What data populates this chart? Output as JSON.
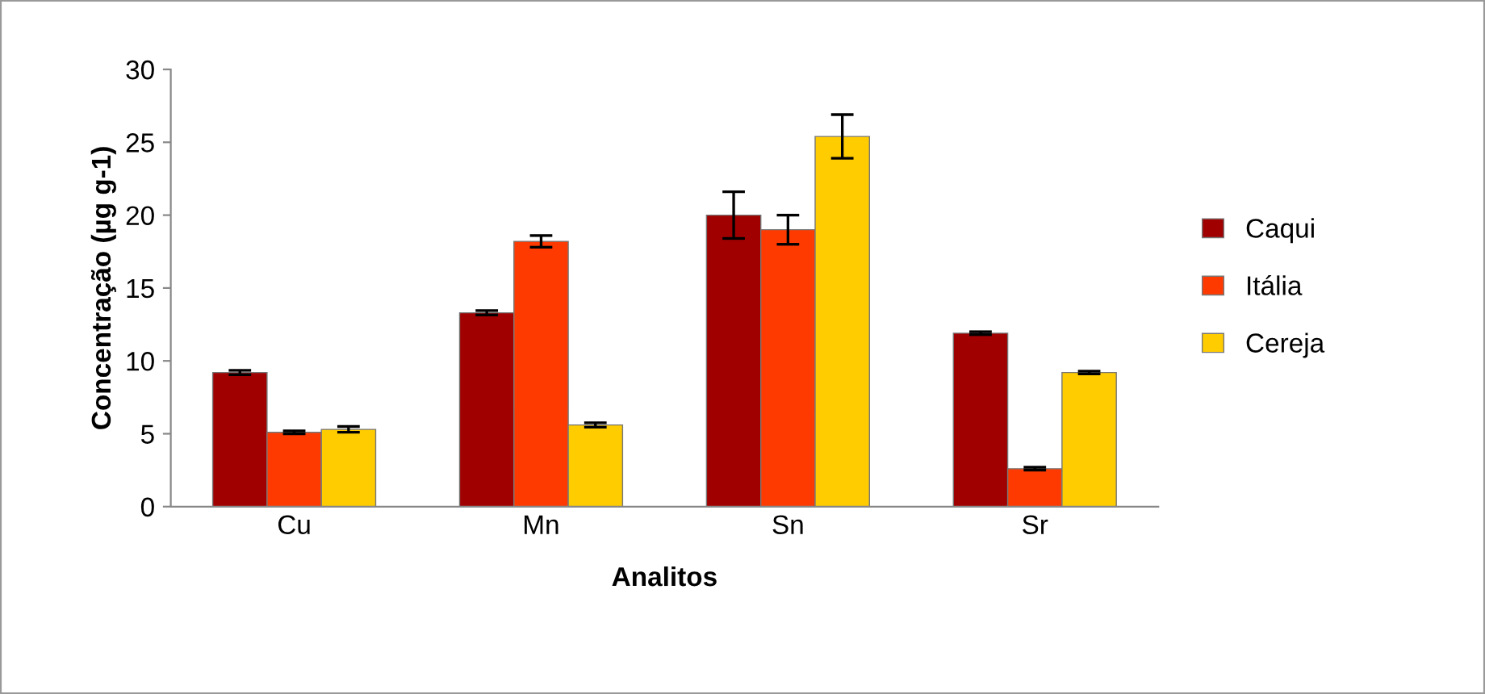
{
  "chart_data": {
    "type": "bar",
    "xlabel": "Analitos",
    "ylabel": "Concentração (µg g-1)",
    "categories": [
      "Cu",
      "Mn",
      "Sn",
      "Sr"
    ],
    "series": [
      {
        "name": "Caqui",
        "color": "#a00000",
        "values": [
          9.2,
          13.3,
          20.0,
          11.9
        ],
        "errors": [
          0.15,
          0.15,
          1.6,
          0.1
        ]
      },
      {
        "name": "Itália",
        "color": "#ff3a00",
        "values": [
          5.1,
          18.2,
          19.0,
          2.6
        ],
        "errors": [
          0.1,
          0.4,
          1.0,
          0.1
        ]
      },
      {
        "name": "Cereja",
        "color": "#ffcc00",
        "values": [
          5.3,
          5.6,
          25.4,
          9.2
        ],
        "errors": [
          0.2,
          0.15,
          1.5,
          0.1
        ]
      }
    ],
    "ylim": [
      0,
      30
    ],
    "yticks": [
      0,
      5,
      10,
      15,
      20,
      25,
      30
    ],
    "grid": false,
    "legend": "right"
  }
}
